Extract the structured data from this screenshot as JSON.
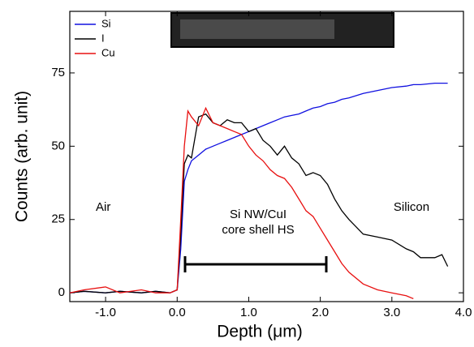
{
  "chart_data": {
    "type": "line",
    "x": [
      -1.5,
      -1.3,
      -1.0,
      -0.8,
      -0.5,
      -0.3,
      -0.1,
      0.0,
      0.05,
      0.1,
      0.15,
      0.2,
      0.3,
      0.4,
      0.5,
      0.6,
      0.7,
      0.8,
      0.9,
      1.0,
      1.1,
      1.2,
      1.3,
      1.4,
      1.5,
      1.6,
      1.7,
      1.8,
      1.9,
      2.0,
      2.1,
      2.2,
      2.3,
      2.4,
      2.6,
      2.8,
      3.0,
      3.2,
      3.3,
      3.4,
      3.6,
      3.7,
      3.78
    ],
    "series": [
      {
        "name": "Si",
        "color": "#1010e0",
        "values": [
          0,
          0.5,
          0,
          0.5,
          0,
          0.5,
          0,
          1,
          15,
          38,
          42,
          45,
          47,
          49,
          50,
          51,
          52,
          53,
          54,
          55,
          56,
          57,
          58,
          59,
          60,
          60.5,
          61,
          62,
          63,
          63.5,
          64.5,
          65,
          66,
          66.5,
          68,
          69,
          70,
          70.5,
          71,
          71,
          71.5,
          71.5,
          71.5
        ]
      },
      {
        "name": "I",
        "color": "#000000",
        "values": [
          0,
          0.5,
          0,
          0.5,
          0,
          0.5,
          0,
          1,
          20,
          44,
          47,
          46,
          60,
          61,
          58,
          57,
          59,
          58,
          58,
          55,
          56,
          52,
          50,
          47,
          50,
          46,
          44,
          40,
          41,
          40,
          37,
          32,
          28,
          25,
          20,
          19,
          18,
          15,
          14,
          12,
          12,
          13,
          9
        ]
      },
      {
        "name": "Cu",
        "color": "#e81010",
        "values": [
          0,
          1,
          2,
          0,
          1,
          0,
          0,
          1,
          25,
          50,
          62,
          60,
          57,
          63,
          58,
          57,
          56,
          55,
          54,
          50,
          47,
          45,
          42,
          40,
          39,
          36,
          32,
          28,
          26,
          22,
          18,
          14,
          10,
          7,
          3,
          1,
          0,
          -1,
          -2,
          null,
          null,
          null,
          null
        ]
      }
    ],
    "xlabel": "Depth (μm)",
    "ylabel": "Counts (arb. unit)",
    "xlim": [
      -1.5,
      4.0
    ],
    "ylim": [
      -3,
      96
    ],
    "xticks": [
      {
        "value": -1,
        "label": "-1.0"
      },
      {
        "value": 0,
        "label": "0.0"
      },
      {
        "value": 1,
        "label": "1.0"
      },
      {
        "value": 2,
        "label": "2.0"
      },
      {
        "value": 3,
        "label": "3.0"
      },
      {
        "value": 4,
        "label": "4.0"
      }
    ],
    "yticks": [
      0,
      25,
      50,
      75
    ],
    "annotations": [
      "Air",
      "Si NW/CuI",
      "core shell HS",
      "Silicon"
    ]
  }
}
